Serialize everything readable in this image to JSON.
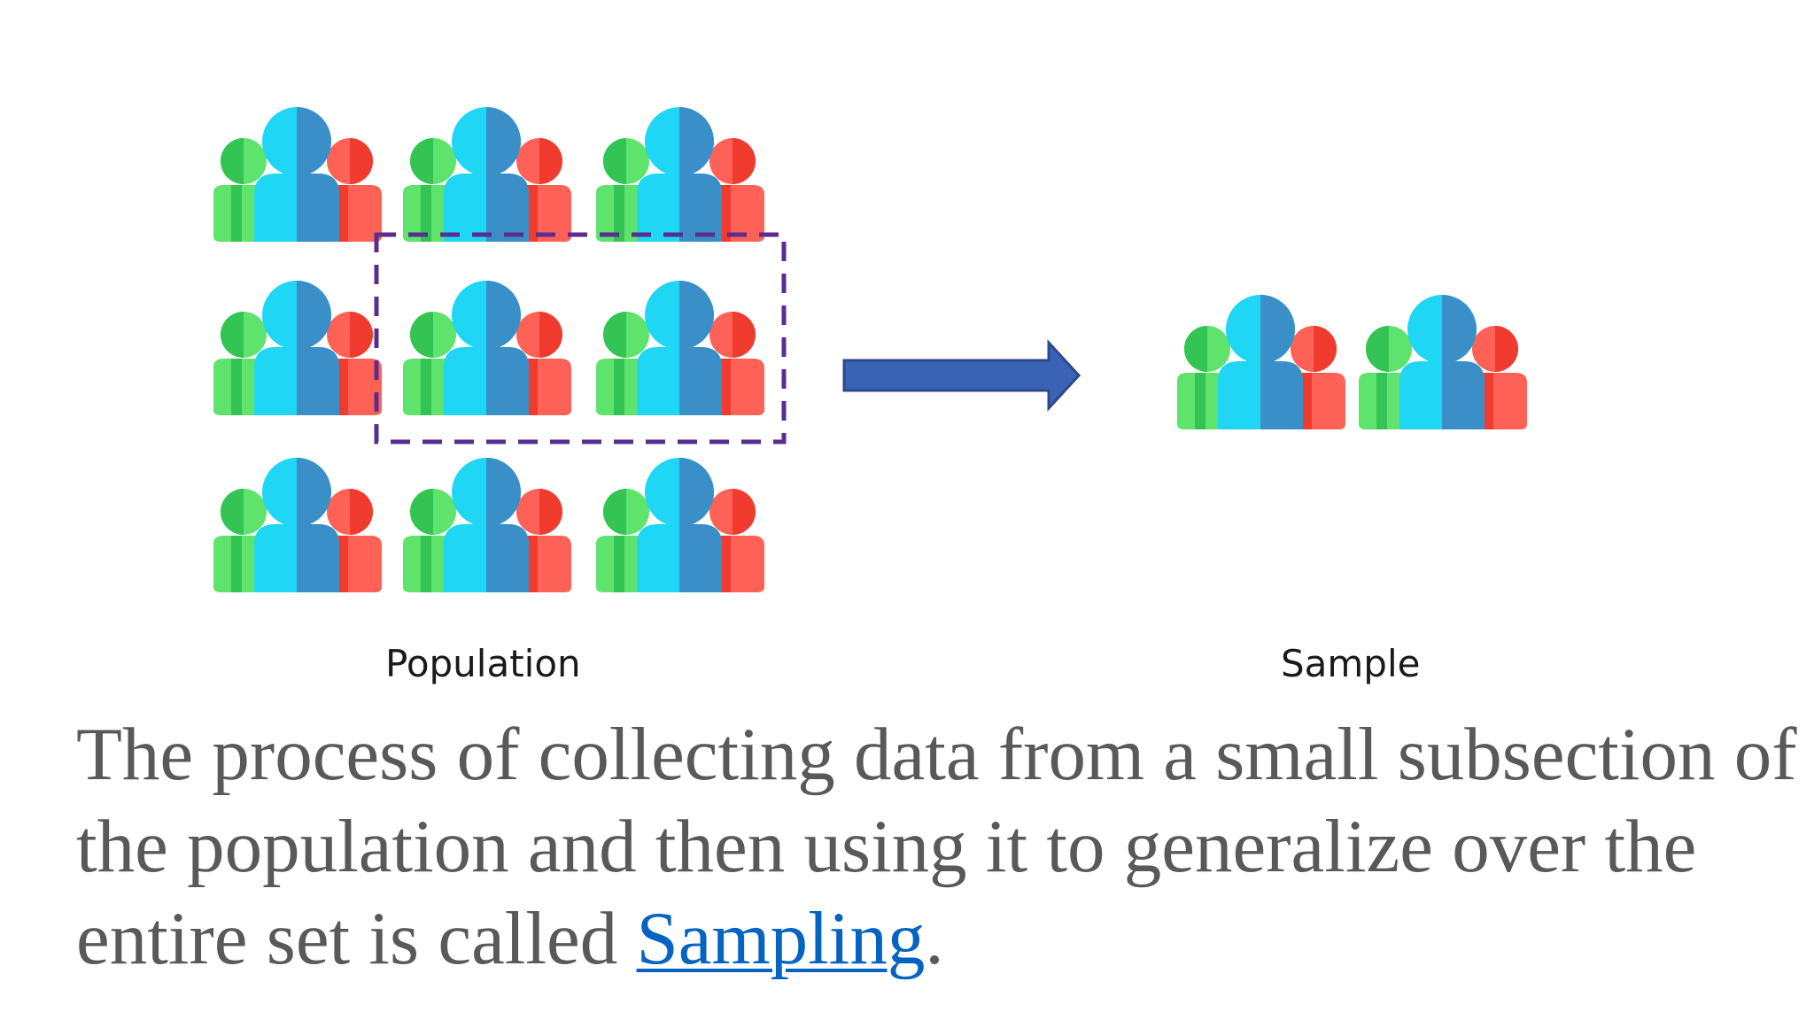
{
  "labels": {
    "population": "Population",
    "sample": "Sample"
  },
  "description": {
    "text_before_link": "The process of collecting data from a small subsection of the population and then using it to generalize over the entire set is called ",
    "link_text": "Sampling",
    "text_after_link": "."
  },
  "colors": {
    "person_green": "#5ee36c",
    "person_green_shade": "#34c453",
    "person_blue": "#1fd6f4",
    "person_blue_shade": "#3a8fc8",
    "person_red": "#fe6155",
    "person_red_shade": "#f03b2e",
    "selection_border": "#5b2d8e",
    "arrow_fill": "#3a62b5",
    "arrow_stroke": "#2a4a8c",
    "link": "#0563c1",
    "body_text": "#595959"
  },
  "diagram": {
    "population_groups": 9,
    "selected_groups": 2,
    "sample_groups": 2
  }
}
